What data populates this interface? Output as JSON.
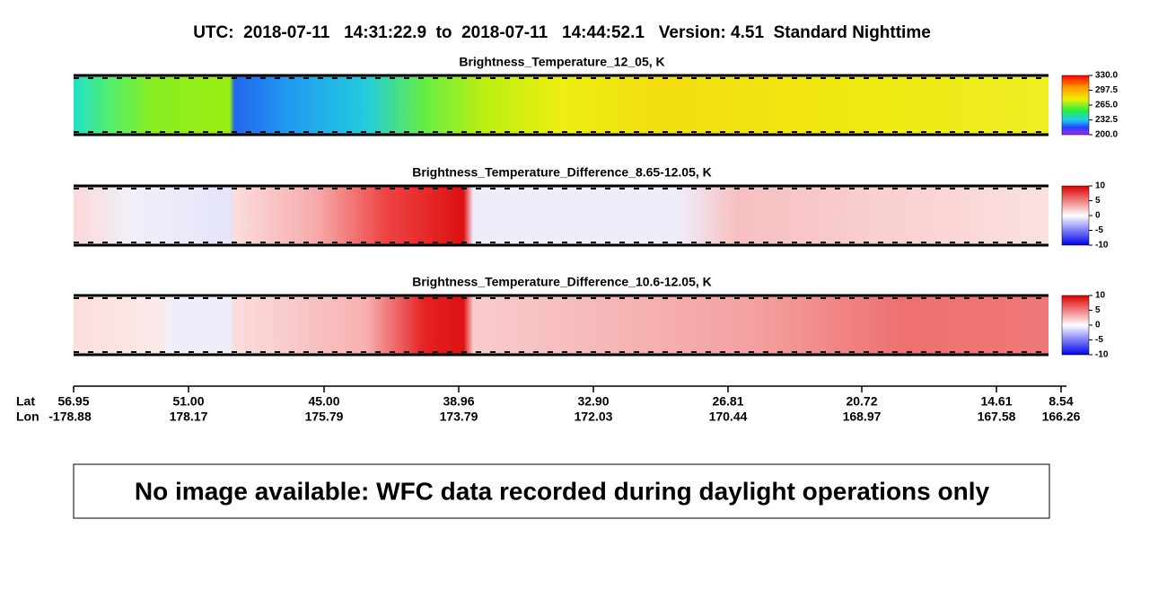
{
  "header": {
    "title": "UTC:  2018-07-11   14:31:22.9  to  2018-07-11   14:44:52.1   Version: 4.51  Standard Nighttime"
  },
  "panels": [
    {
      "title": "Brightness_Temperature_12_05, K",
      "colorbar_ticks": [
        "330.0",
        "297.5",
        "265.0",
        "232.5",
        "200.0"
      ]
    },
    {
      "title": "Brightness_Temperature_Difference_8.65-12.05, K",
      "colorbar_ticks": [
        "10",
        "5",
        "0",
        "-5",
        "-10"
      ]
    },
    {
      "title": "Brightness_Temperature_Difference_10.6-12.05, K",
      "colorbar_ticks": [
        "10",
        "5",
        "0",
        "-5",
        "-10"
      ]
    }
  ],
  "axis": {
    "lat_label": "Lat",
    "lon_label": "Lon",
    "ticks": [
      {
        "lat": "56.95",
        "lon": "-178.88"
      },
      {
        "lat": "51.00",
        "lon": "178.17"
      },
      {
        "lat": "45.00",
        "lon": "175.79"
      },
      {
        "lat": "38.96",
        "lon": "173.79"
      },
      {
        "lat": "32.90",
        "lon": "172.03"
      },
      {
        "lat": "26.81",
        "lon": "170.44"
      },
      {
        "lat": "20.72",
        "lon": "168.97"
      },
      {
        "lat": "14.61",
        "lon": "167.58"
      },
      {
        "lat": "8.54",
        "lon": "166.26"
      }
    ]
  },
  "message": "No image available: WFC data recorded during daylight operations only"
}
